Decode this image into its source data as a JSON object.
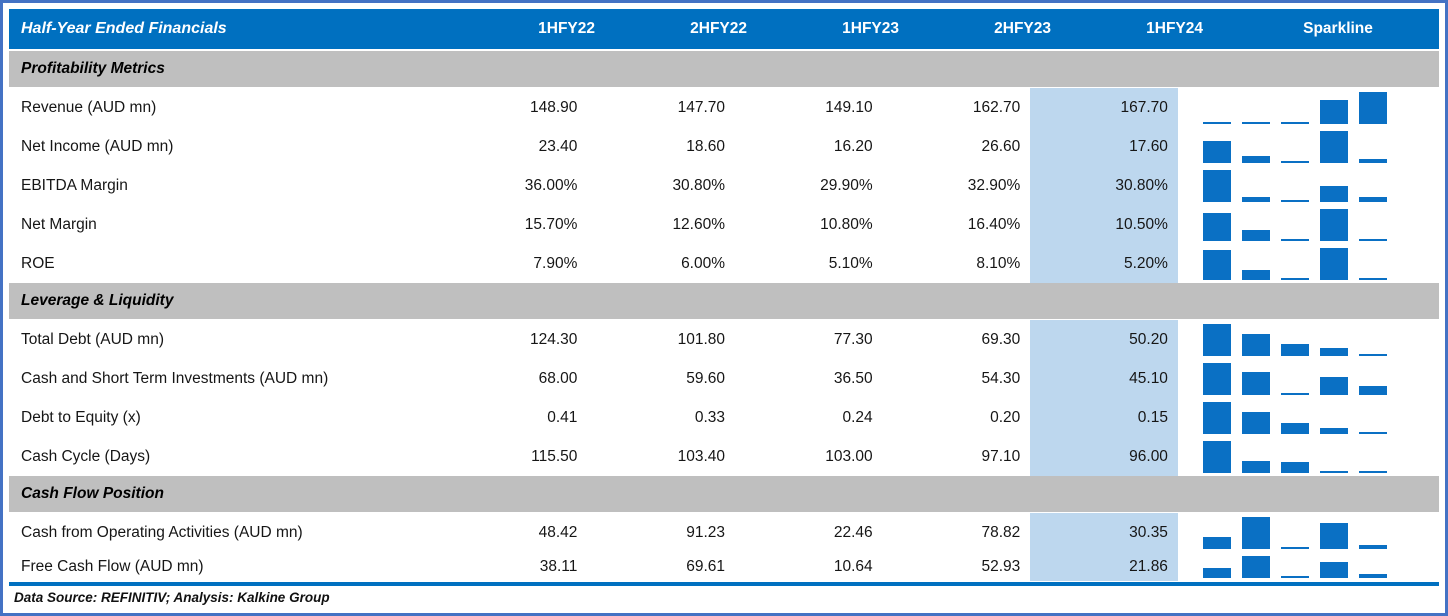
{
  "table": {
    "title": "Half-Year Ended Financials",
    "period_columns": [
      "1HFY22",
      "2HFY22",
      "1HFY23",
      "2HFY23",
      "1HFY24"
    ],
    "sparkline_column": "Sparkline",
    "highlighted_column": "1HFY24",
    "sections": [
      {
        "title": "Profitability Metrics",
        "rows": [
          {
            "label": "Revenue (AUD mn)",
            "display": [
              "148.90",
              "147.70",
              "149.10",
              "162.70",
              "167.70"
            ],
            "values": [
              148.9,
              147.7,
              149.1,
              162.7,
              167.7
            ]
          },
          {
            "label": "Net Income (AUD mn)",
            "display": [
              "23.40",
              "18.60",
              "16.20",
              "26.60",
              "17.60"
            ],
            "values": [
              23.4,
              18.6,
              16.2,
              26.6,
              17.6
            ]
          },
          {
            "label": "EBITDA Margin",
            "display": [
              "36.00%",
              "30.80%",
              "29.90%",
              "32.90%",
              "30.80%"
            ],
            "values": [
              36.0,
              30.8,
              29.9,
              32.9,
              30.8
            ]
          },
          {
            "label": "Net Margin",
            "display": [
              "15.70%",
              "12.60%",
              "10.80%",
              "16.40%",
              "10.50%"
            ],
            "values": [
              15.7,
              12.6,
              10.8,
              16.4,
              10.5
            ]
          },
          {
            "label": "ROE",
            "display": [
              "7.90%",
              "6.00%",
              "5.10%",
              "8.10%",
              "5.20%"
            ],
            "values": [
              7.9,
              6.0,
              5.1,
              8.1,
              5.2
            ]
          }
        ]
      },
      {
        "title": "Leverage & Liquidity",
        "rows": [
          {
            "label": "Total Debt (AUD mn)",
            "display": [
              "124.30",
              "101.80",
              "77.30",
              "69.30",
              "50.20"
            ],
            "values": [
              124.3,
              101.8,
              77.3,
              69.3,
              50.2
            ]
          },
          {
            "label": "Cash and Short Term Investments (AUD mn)",
            "display": [
              "68.00",
              "59.60",
              "36.50",
              "54.30",
              "45.10"
            ],
            "values": [
              68.0,
              59.6,
              36.5,
              54.3,
              45.1
            ]
          },
          {
            "label": "Debt to Equity (x)",
            "display": [
              "0.41",
              "0.33",
              "0.24",
              "0.20",
              "0.15"
            ],
            "values": [
              0.41,
              0.33,
              0.24,
              0.2,
              0.15
            ]
          },
          {
            "label": "Cash Cycle (Days)",
            "display": [
              "115.50",
              "103.40",
              "103.00",
              "97.10",
              "96.00"
            ],
            "values": [
              115.5,
              103.4,
              103.0,
              97.1,
              96.0
            ]
          }
        ]
      },
      {
        "title": "Cash Flow Position",
        "rows": [
          {
            "label": "Cash from Operating Activities (AUD mn)",
            "display": [
              "48.42",
              "91.23",
              "22.46",
              "78.82",
              "30.35"
            ],
            "values": [
              48.42,
              91.23,
              22.46,
              78.82,
              30.35
            ]
          },
          {
            "label": "Free Cash Flow (AUD mn)",
            "display": [
              "38.11",
              "69.61",
              "10.64",
              "52.93",
              "21.86"
            ],
            "values": [
              38.11,
              69.61,
              10.64,
              52.93,
              21.86
            ]
          }
        ]
      }
    ],
    "footer": "Data Source: REFINITIV; Analysis: Kalkine Group"
  },
  "colors": {
    "frame_border": "#4472C4",
    "header_bg": "#0070C0",
    "header_text": "#FFFFFF",
    "section_bg": "#BFBFBF",
    "highlight_bg": "#BDD7EE",
    "sparkline_bar": "#0A70C4",
    "divider": "#0070C0"
  },
  "chart_data": {
    "type": "table",
    "title": "Half-Year Ended Financials",
    "columns": [
      "1HFY22",
      "2HFY22",
      "1HFY23",
      "2HFY23",
      "1HFY24",
      "Sparkline"
    ],
    "sparkline_type": "column",
    "sections": [
      {
        "title": "Profitability Metrics",
        "rows": [
          {
            "name": "Revenue (AUD mn)",
            "values": [
              148.9,
              147.7,
              149.1,
              162.7,
              167.7
            ]
          },
          {
            "name": "Net Income (AUD mn)",
            "values": [
              23.4,
              18.6,
              16.2,
              26.6,
              17.6
            ]
          },
          {
            "name": "EBITDA Margin (%)",
            "values": [
              36.0,
              30.8,
              29.9,
              32.9,
              30.8
            ]
          },
          {
            "name": "Net Margin (%)",
            "values": [
              15.7,
              12.6,
              10.8,
              16.4,
              10.5
            ]
          },
          {
            "name": "ROE (%)",
            "values": [
              7.9,
              6.0,
              5.1,
              8.1,
              5.2
            ]
          }
        ]
      },
      {
        "title": "Leverage & Liquidity",
        "rows": [
          {
            "name": "Total Debt (AUD mn)",
            "values": [
              124.3,
              101.8,
              77.3,
              69.3,
              50.2
            ]
          },
          {
            "name": "Cash and Short Term Investments (AUD mn)",
            "values": [
              68.0,
              59.6,
              36.5,
              54.3,
              45.1
            ]
          },
          {
            "name": "Debt to Equity (x)",
            "values": [
              0.41,
              0.33,
              0.24,
              0.2,
              0.15
            ]
          },
          {
            "name": "Cash Cycle (Days)",
            "values": [
              115.5,
              103.4,
              103.0,
              97.1,
              96.0
            ]
          }
        ]
      },
      {
        "title": "Cash Flow Position",
        "rows": [
          {
            "name": "Cash from Operating Activities (AUD mn)",
            "values": [
              48.42,
              91.23,
              22.46,
              78.82,
              30.35
            ]
          },
          {
            "name": "Free Cash Flow (AUD mn)",
            "values": [
              38.11,
              69.61,
              10.64,
              52.93,
              21.86
            ]
          }
        ]
      }
    ]
  }
}
